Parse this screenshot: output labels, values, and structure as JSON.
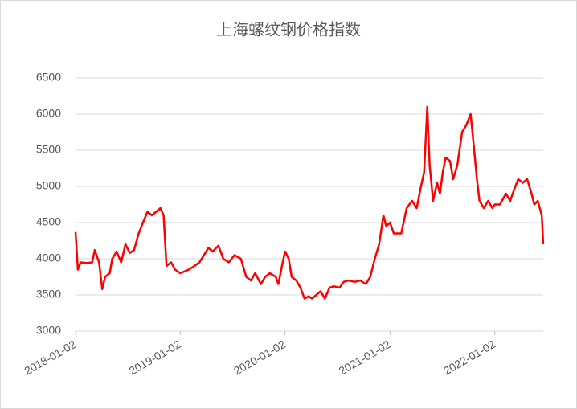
{
  "chart_data": {
    "type": "line",
    "title": "上海螺纹钢价格指数",
    "x": [
      "2018-01-02",
      "2018-01-10",
      "2018-01-20",
      "2018-02-10",
      "2018-03-01",
      "2018-03-10",
      "2018-03-25",
      "2018-04-05",
      "2018-04-15",
      "2018-05-01",
      "2018-05-10",
      "2018-05-25",
      "2018-06-10",
      "2018-06-25",
      "2018-07-10",
      "2018-07-25",
      "2018-08-10",
      "2018-08-25",
      "2018-09-10",
      "2018-09-25",
      "2018-10-10",
      "2018-10-25",
      "2018-11-05",
      "2018-11-15",
      "2018-12-01",
      "2018-12-15",
      "2019-01-02",
      "2019-02-01",
      "2019-02-20",
      "2019-03-10",
      "2019-04-10",
      "2019-04-25",
      "2019-05-15",
      "2019-06-01",
      "2019-06-20",
      "2019-07-10",
      "2019-08-01",
      "2019-08-20",
      "2019-09-05",
      "2019-09-20",
      "2019-10-10",
      "2019-10-25",
      "2019-11-10",
      "2019-12-01",
      "2019-12-10",
      "2019-12-25",
      "2020-01-02",
      "2020-01-15",
      "2020-01-25",
      "2020-02-10",
      "2020-02-25",
      "2020-03-10",
      "2020-03-25",
      "2020-04-05",
      "2020-04-20",
      "2020-05-05",
      "2020-05-20",
      "2020-06-05",
      "2020-06-20",
      "2020-07-10",
      "2020-07-25",
      "2020-08-10",
      "2020-09-01",
      "2020-09-20",
      "2020-10-10",
      "2020-10-25",
      "2020-11-10",
      "2020-11-25",
      "2020-12-10",
      "2020-12-20",
      "2021-01-02",
      "2021-01-15",
      "2021-02-10",
      "2021-03-01",
      "2021-03-20",
      "2021-04-05",
      "2021-04-20",
      "2021-05-01",
      "2021-05-12",
      "2021-05-20",
      "2021-06-01",
      "2021-06-15",
      "2021-06-25",
      "2021-07-05",
      "2021-07-15",
      "2021-07-30",
      "2021-08-10",
      "2021-08-25",
      "2021-09-10",
      "2021-09-25",
      "2021-10-10",
      "2021-10-20",
      "2021-11-01",
      "2021-11-10",
      "2021-11-25",
      "2021-12-10",
      "2021-12-25",
      "2022-01-02",
      "2022-01-20",
      "2022-02-10",
      "2022-02-25",
      "2022-03-10",
      "2022-03-25",
      "2022-04-10",
      "2022-04-25",
      "2022-05-10",
      "2022-05-20",
      "2022-06-01",
      "2022-06-15",
      "2022-06-20"
    ],
    "series": [
      {
        "color": "#ff0000",
        "values": [
          4370,
          3850,
          3950,
          3940,
          3950,
          4120,
          3950,
          3580,
          3750,
          3800,
          4000,
          4100,
          3950,
          4200,
          4080,
          4120,
          4350,
          4500,
          4650,
          4600,
          4650,
          4700,
          4600,
          3900,
          3950,
          3850,
          3800,
          3850,
          3900,
          3950,
          4150,
          4100,
          4180,
          4000,
          3950,
          4050,
          4000,
          3750,
          3700,
          3800,
          3650,
          3750,
          3800,
          3750,
          3650,
          3950,
          4100,
          4000,
          3750,
          3700,
          3600,
          3450,
          3480,
          3450,
          3500,
          3550,
          3450,
          3600,
          3620,
          3600,
          3680,
          3700,
          3680,
          3700,
          3650,
          3750,
          4000,
          4200,
          4600,
          4450,
          4500,
          4350,
          4350,
          4700,
          4800,
          4700,
          5000,
          5200,
          6100,
          5300,
          4800,
          5050,
          4900,
          5200,
          5400,
          5350,
          5100,
          5300,
          5750,
          5850,
          6000,
          5600,
          5100,
          4800,
          4700,
          4800,
          4700,
          4750,
          4750,
          4900,
          4800,
          4950,
          5100,
          5050,
          5100,
          4900,
          4750,
          4800,
          4600,
          4200
        ]
      }
    ],
    "xlim": [
      "2018-01-02",
      "2022-06-20"
    ],
    "xticks": [
      "2018-01-02",
      "2019-01-02",
      "2020-01-02",
      "2021-01-02",
      "2022-01-02"
    ],
    "ylim": [
      3000,
      6500
    ],
    "yticks": [
      3000,
      3500,
      4000,
      4500,
      5000,
      5500,
      6000,
      6500
    ],
    "grid": true
  }
}
